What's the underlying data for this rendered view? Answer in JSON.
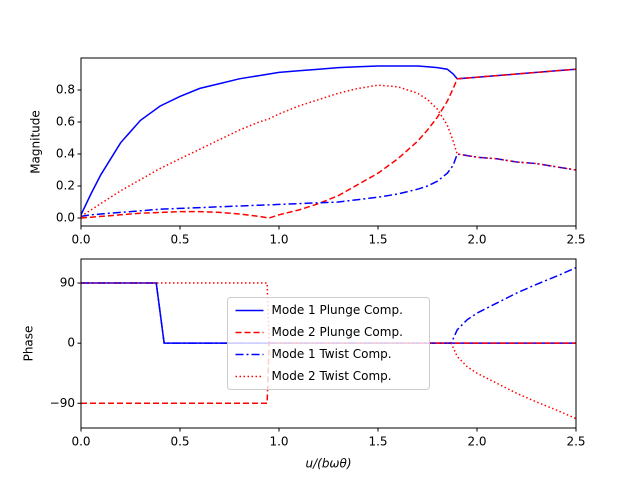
{
  "chart_data": [
    {
      "type": "line",
      "y_label": "Magnitude",
      "x": [
        0,
        0.05,
        0.1,
        0.2,
        0.3,
        0.4,
        0.5,
        0.6,
        0.7,
        0.8,
        0.9,
        0.95,
        1.0,
        1.1,
        1.2,
        1.3,
        1.4,
        1.5,
        1.6,
        1.7,
        1.75,
        1.8,
        1.85,
        1.88,
        1.9,
        2.0,
        2.1,
        2.2,
        2.3,
        2.4,
        2.5
      ],
      "series": [
        {
          "color": "#0000ff",
          "linestyle": "solid",
          "values": [
            0.02,
            0.15,
            0.27,
            0.47,
            0.61,
            0.7,
            0.76,
            0.81,
            0.84,
            0.87,
            0.89,
            0.9,
            0.91,
            0.92,
            0.93,
            0.94,
            0.945,
            0.95,
            0.95,
            0.95,
            0.945,
            0.94,
            0.93,
            0.9,
            0.87,
            0.88,
            0.89,
            0.9,
            0.91,
            0.92,
            0.93
          ]
        },
        {
          "color": "#ff0000",
          "linestyle": "dashed",
          "values": [
            0.0,
            0.005,
            0.01,
            0.02,
            0.03,
            0.035,
            0.04,
            0.04,
            0.035,
            0.025,
            0.01,
            0.0,
            0.02,
            0.05,
            0.09,
            0.14,
            0.21,
            0.28,
            0.37,
            0.48,
            0.55,
            0.63,
            0.73,
            0.81,
            0.87,
            0.88,
            0.89,
            0.9,
            0.91,
            0.92,
            0.93
          ]
        },
        {
          "color": "#0000ff",
          "linestyle": "dashdot",
          "values": [
            0.01,
            0.02,
            0.025,
            0.035,
            0.045,
            0.055,
            0.06,
            0.065,
            0.07,
            0.075,
            0.08,
            0.082,
            0.085,
            0.09,
            0.095,
            0.1,
            0.115,
            0.13,
            0.15,
            0.18,
            0.2,
            0.23,
            0.28,
            0.33,
            0.4,
            0.38,
            0.37,
            0.35,
            0.34,
            0.32,
            0.3
          ]
        },
        {
          "color": "#ff0000",
          "linestyle": "dotted",
          "values": [
            0.01,
            0.05,
            0.09,
            0.17,
            0.24,
            0.31,
            0.37,
            0.43,
            0.49,
            0.55,
            0.6,
            0.62,
            0.65,
            0.7,
            0.74,
            0.78,
            0.81,
            0.83,
            0.82,
            0.78,
            0.74,
            0.68,
            0.58,
            0.48,
            0.4,
            0.38,
            0.37,
            0.35,
            0.34,
            0.32,
            0.3
          ]
        }
      ],
      "xlim": [
        0,
        2.5
      ],
      "xticks": [
        {
          "value": 0,
          "label": "0.0"
        },
        {
          "value": 0.5,
          "label": "0.5"
        },
        {
          "value": 1,
          "label": "1.0"
        },
        {
          "value": 1.5,
          "label": "1.5"
        },
        {
          "value": 2,
          "label": "2.0"
        },
        {
          "value": 2.5,
          "label": "2.5"
        }
      ],
      "ylim": [
        -0.05,
        1.0
      ],
      "yticks": [
        {
          "value": 0,
          "label": "0.0"
        },
        {
          "value": 0.2,
          "label": "0.2"
        },
        {
          "value": 0.4,
          "label": "0.4"
        },
        {
          "value": 0.6,
          "label": "0.6"
        },
        {
          "value": 0.8,
          "label": "0.8"
        }
      ]
    },
    {
      "type": "line",
      "x_label": "u/(bωθ)",
      "y_label": "Phase",
      "x": [
        0,
        0.38,
        0.42,
        0.94,
        0.95,
        1.0,
        1.5,
        1.8,
        1.87,
        1.9,
        1.95,
        2.0,
        2.1,
        2.2,
        2.3,
        2.4,
        2.5
      ],
      "series": [
        {
          "name": "Mode 1 Plunge Comp.",
          "color": "#0000ff",
          "linestyle": "solid",
          "values": [
            90,
            90,
            0,
            0,
            0,
            0,
            0,
            0,
            0,
            0,
            0,
            0,
            0,
            0,
            0,
            0,
            0
          ]
        },
        {
          "name": "Mode 2 Plunge Comp.",
          "color": "#ff0000",
          "linestyle": "dashed",
          "values": [
            -90,
            -90,
            -90,
            -90,
            0,
            0,
            0,
            0,
            0,
            0,
            0,
            0,
            0,
            0,
            0,
            0,
            0
          ]
        },
        {
          "name": "Mode 1 Twist Comp.",
          "color": "#0000ff",
          "linestyle": "dashdot",
          "values": [
            90,
            90,
            0,
            0,
            0,
            0,
            0,
            0,
            0,
            20,
            35,
            45,
            60,
            75,
            88,
            100,
            113
          ]
        },
        {
          "name": "Mode 2 Twist Comp.",
          "color": "#ff0000",
          "linestyle": "dotted",
          "values": [
            90,
            90,
            90,
            90,
            0,
            0,
            0,
            0,
            0,
            -20,
            -35,
            -45,
            -60,
            -75,
            -88,
            -100,
            -113
          ]
        }
      ],
      "xlim": [
        0,
        2.5
      ],
      "xticks": [
        {
          "value": 0,
          "label": "0.0"
        },
        {
          "value": 0.5,
          "label": "0.5"
        },
        {
          "value": 1,
          "label": "1.0"
        },
        {
          "value": 1.5,
          "label": "1.5"
        },
        {
          "value": 2,
          "label": "2.0"
        },
        {
          "value": 2.5,
          "label": "2.5"
        }
      ],
      "ylim": [
        -127,
        126
      ],
      "yticks": [
        {
          "value": -90,
          "label": "−90"
        },
        0,
        90
      ],
      "legend": "center"
    }
  ]
}
